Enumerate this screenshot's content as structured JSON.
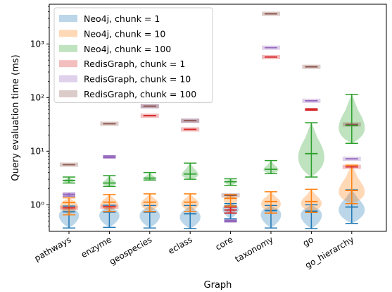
{
  "chart_data": {
    "type": "violin",
    "title": "",
    "xlabel": "Graph",
    "ylabel": "Query evaluation time (ms)",
    "yscale": "log",
    "ylim": [
      0.32,
      5500
    ],
    "y_ticks": [
      1,
      10,
      100,
      1000
    ],
    "y_tick_labels": [
      "10⁰",
      "10¹",
      "10²",
      "10³"
    ],
    "categories": [
      "pathways",
      "enzyme",
      "geospecies",
      "eclass",
      "core",
      "taxonomy",
      "go",
      "go_hierarchy"
    ],
    "legend_position": "top-left",
    "series": [
      {
        "name": "Neo4j, chunk = 1",
        "color": "#1f77b4",
        "stats": [
          {
            "min": 0.37,
            "median": 0.74,
            "max": 0.95
          },
          {
            "min": 0.38,
            "median": 0.73,
            "max": 0.98
          },
          {
            "min": 0.37,
            "median": 0.73,
            "max": 0.97
          },
          {
            "min": 0.36,
            "median": 0.68,
            "max": 0.97
          },
          {
            "min": 0.55,
            "median": 0.95,
            "max": 1.05
          },
          {
            "min": 0.37,
            "median": 0.78,
            "max": 0.97
          },
          {
            "min": 0.36,
            "median": 0.76,
            "max": 1.0
          },
          {
            "min": 0.45,
            "median": 0.91,
            "max": 1.9
          }
        ]
      },
      {
        "name": "Neo4j, chunk = 10",
        "color": "#ff7f0e",
        "stats": [
          {
            "min": 0.65,
            "median": 1.1,
            "max": 1.35
          },
          {
            "min": 0.75,
            "median": 1.12,
            "max": 1.55
          },
          {
            "min": 0.75,
            "median": 1.12,
            "max": 1.6
          },
          {
            "min": 0.75,
            "median": 1.12,
            "max": 1.6
          },
          {
            "min": 0.95,
            "median": 1.32,
            "max": 1.55
          },
          {
            "min": 0.7,
            "median": 1.15,
            "max": 1.75
          },
          {
            "min": 0.72,
            "median": 1.15,
            "max": 1.95
          },
          {
            "min": 1.05,
            "median": 1.85,
            "max": 5.5
          }
        ]
      },
      {
        "name": "Neo4j, chunk = 100",
        "color": "#2ca02c",
        "stats": [
          {
            "min": 2.55,
            "median": 2.85,
            "max": 3.3
          },
          {
            "min": 2.2,
            "median": 2.55,
            "max": 3.5
          },
          {
            "min": 2.9,
            "median": 3.15,
            "max": 4.0
          },
          {
            "min": 3.0,
            "median": 3.75,
            "max": 6.0
          },
          {
            "min": 2.3,
            "median": 2.7,
            "max": 3.05
          },
          {
            "min": 3.8,
            "median": 4.6,
            "max": 6.7
          },
          {
            "min": 3.3,
            "median": 9.0,
            "max": 34
          },
          {
            "min": 14,
            "median": 30,
            "max": 115
          }
        ]
      },
      {
        "name": "RedisGraph, chunk = 1",
        "color": "#d62728",
        "stats": [
          {
            "min": 0.88,
            "median": 0.88,
            "max": 0.88
          },
          {
            "min": 0.9,
            "median": 0.92,
            "max": 0.95
          },
          {
            "min": 45,
            "median": 46,
            "max": 47
          },
          {
            "min": 25,
            "median": 25.5,
            "max": 26
          },
          {
            "min": 0.7,
            "median": 0.8,
            "max": 0.9
          },
          {
            "min": 560,
            "median": 570,
            "max": 580
          },
          {
            "min": 58,
            "median": 60,
            "max": 62
          },
          {
            "min": 5.0,
            "median": 5.1,
            "max": 5.3
          }
        ]
      },
      {
        "name": "RedisGraph, chunk = 10",
        "color": "#9467bd",
        "stats": [
          {
            "min": 1.45,
            "median": 1.55,
            "max": 1.65
          },
          {
            "min": 7.5,
            "median": 7.8,
            "max": 8.2
          },
          {
            "min": 68,
            "median": 69,
            "max": 70
          },
          {
            "min": 36,
            "median": 37,
            "max": 38
          },
          {
            "min": 0.48,
            "median": 0.5,
            "max": 0.52
          },
          {
            "min": 840,
            "median": 850,
            "max": 860
          },
          {
            "min": 86,
            "median": 87,
            "max": 88
          },
          {
            "min": 7.0,
            "median": 7.2,
            "max": 7.4
          }
        ]
      },
      {
        "name": "RedisGraph, chunk = 100",
        "color": "#8c564b",
        "stats": [
          {
            "min": 5.5,
            "median": 5.6,
            "max": 5.7
          },
          {
            "min": 32,
            "median": 32.5,
            "max": 33
          },
          {
            "min": 68,
            "median": 69,
            "max": 70
          },
          {
            "min": 36,
            "median": 37,
            "max": 38
          },
          {
            "min": 1.48,
            "median": 1.5,
            "max": 1.52
          },
          {
            "min": 3600,
            "median": 3650,
            "max": 3700
          },
          {
            "min": 370,
            "median": 375,
            "max": 380
          },
          {
            "min": 31,
            "median": 31.5,
            "max": 32
          }
        ]
      }
    ]
  }
}
